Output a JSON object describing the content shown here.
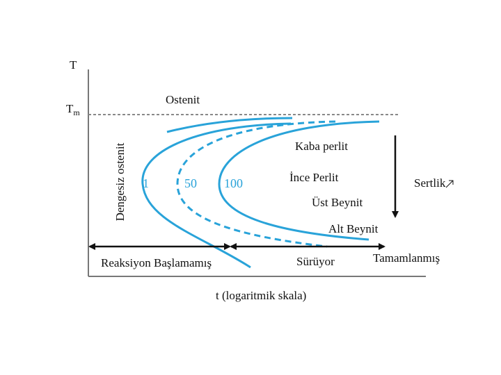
{
  "axes": {
    "y_label": "T",
    "tm": {
      "base": "T",
      "sub": "m"
    },
    "x_label": "t (logaritmik skala)",
    "vertical_side": "Dengesiz ostenit"
  },
  "regions": {
    "top": "Ostenit",
    "coarse": "Kaba perlit",
    "fine": "İnce Perlit",
    "upper_bainite": "Üst Beynit",
    "lower_bainite": "Alt Beynit"
  },
  "hardness": "Sertlik",
  "curve_labels": [
    "1",
    "50",
    "100"
  ],
  "stages": [
    "Reaksiyon Başlamamış",
    "Sürüyor",
    "Tamamlanmış"
  ]
}
